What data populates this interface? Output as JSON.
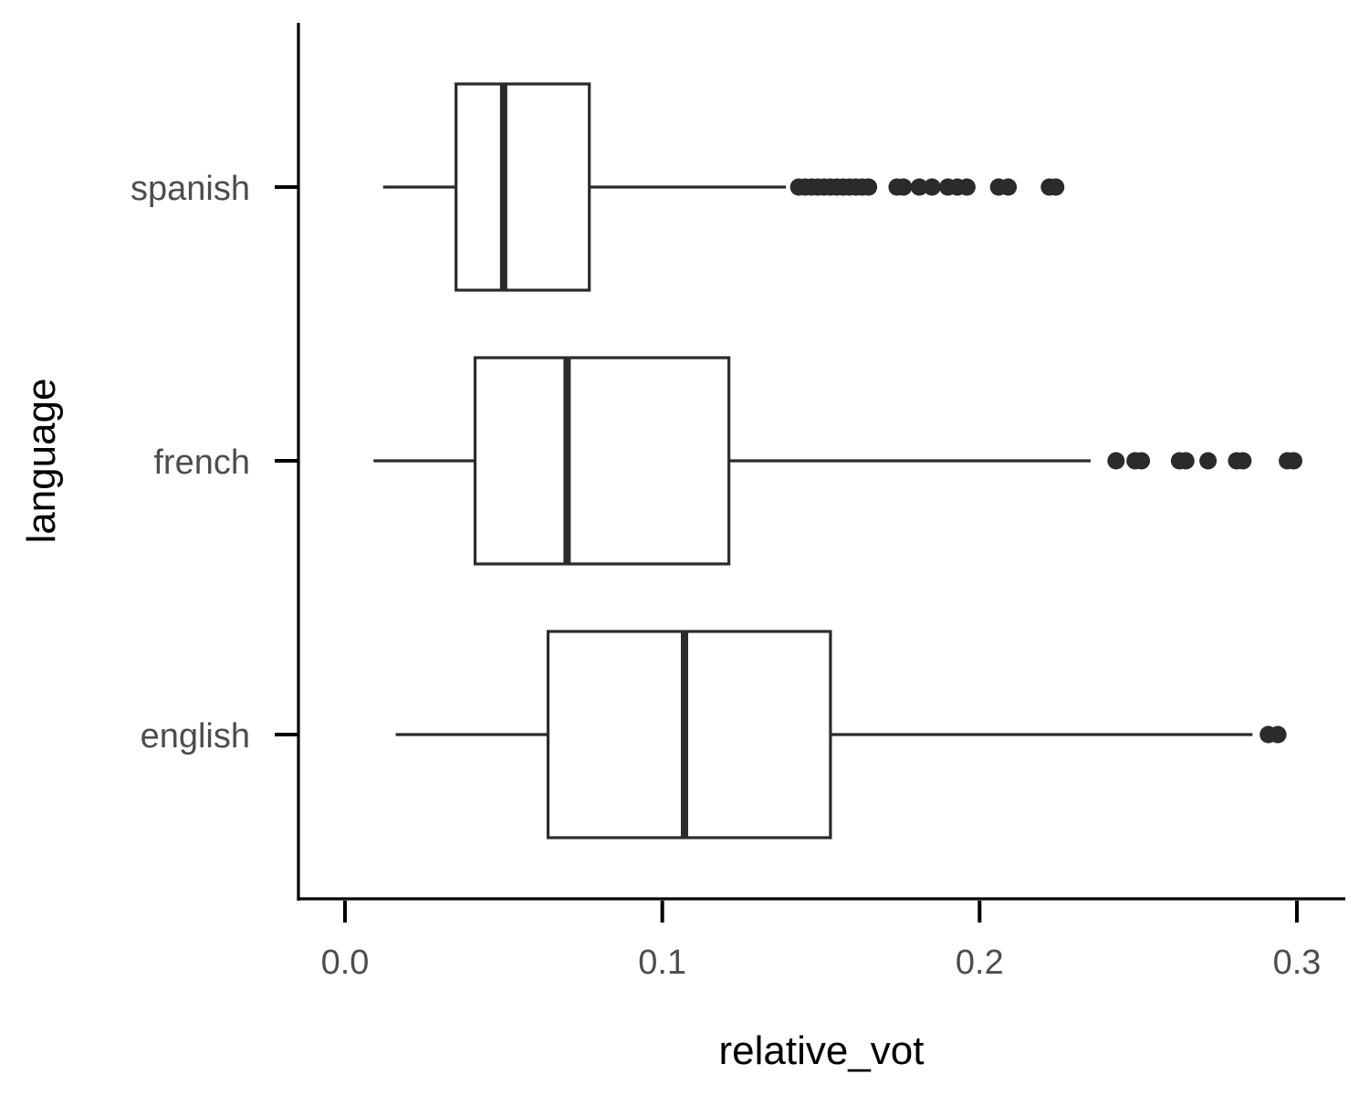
{
  "chart_data": {
    "type": "boxplot",
    "orientation": "horizontal",
    "xlabel": "relative_vot",
    "ylabel": "language",
    "xlim": [
      -0.015,
      0.315
    ],
    "x_ticks": [
      0.0,
      0.1,
      0.2,
      0.3
    ],
    "x_tick_labels": [
      "0.0",
      "0.1",
      "0.2",
      "0.3"
    ],
    "grid": false,
    "categories": [
      "spanish",
      "french",
      "english"
    ],
    "boxes": [
      {
        "category": "spanish",
        "whisker_low": 0.012,
        "q1": 0.035,
        "median": 0.05,
        "q3": 0.077,
        "whisker_high": 0.139,
        "outliers": [
          0.143,
          0.145,
          0.147,
          0.149,
          0.151,
          0.153,
          0.155,
          0.157,
          0.159,
          0.161,
          0.163,
          0.165,
          0.174,
          0.176,
          0.181,
          0.185,
          0.19,
          0.193,
          0.196,
          0.206,
          0.209,
          0.222,
          0.224
        ]
      },
      {
        "category": "french",
        "whisker_low": 0.009,
        "q1": 0.041,
        "median": 0.07,
        "q3": 0.121,
        "whisker_high": 0.235,
        "outliers": [
          0.243,
          0.249,
          0.251,
          0.263,
          0.265,
          0.272,
          0.281,
          0.283,
          0.297,
          0.299
        ]
      },
      {
        "category": "english",
        "whisker_low": 0.016,
        "q1": 0.064,
        "median": 0.107,
        "q3": 0.153,
        "whisker_high": 0.286,
        "outliers": [
          0.291,
          0.294
        ]
      }
    ],
    "colors": {
      "box_stroke": "#2b2b2b",
      "box_fill": "#ffffff",
      "outlier_fill": "#2b2b2b",
      "axis": "#000000",
      "tick_label": "#4d4d4d"
    }
  }
}
